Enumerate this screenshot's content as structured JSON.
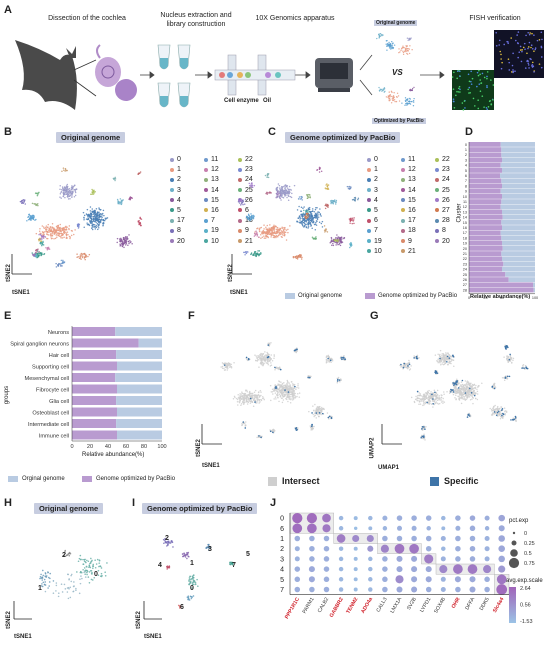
{
  "panels": {
    "A": {
      "letter": "A",
      "steps": [
        "Dissection of the cochlea",
        "Nucleus extraction and library construction",
        "10X Genomics apparatus",
        "FISH verification"
      ],
      "chip_labels": [
        "Cell enzyme",
        "Oil"
      ],
      "original_label": "Original genome",
      "vs_label": "VS",
      "optimized_label": "Optimized by PacBio"
    },
    "B": {
      "letter": "B",
      "title": "Original genome",
      "xlabel": "tSNE1",
      "ylabel": "tSNE2"
    },
    "C": {
      "letter": "C",
      "title": "Genome optimized by PacBio",
      "xlabel": "tSNE1",
      "ylabel": "tSNE2",
      "legend_original": "Original genome",
      "legend_optimized": "Genome optimized by PacBio"
    },
    "D": {
      "letter": "D",
      "ylabel": "Cluster",
      "xlabel": "Relative abundance(%)"
    },
    "E": {
      "letter": "E",
      "ylabel": "groups",
      "xlabel": "Relative abundance(%)",
      "legend_original": "Orginal genome",
      "legend_optimized": "Genome optimized by PacBio"
    },
    "F": {
      "letter": "F",
      "xlabel": "tSNE1",
      "ylabel": "tSNE2",
      "legend": "Intersect"
    },
    "G": {
      "letter": "G",
      "xlabel": "UMAP1",
      "ylabel": "UMAP2",
      "legend": "Specific"
    },
    "H": {
      "letter": "H",
      "title": "Original genome",
      "xlabel": "tSNE1",
      "ylabel": "tSNE2",
      "cluster_labels": [
        "2",
        "1",
        "0"
      ]
    },
    "I": {
      "letter": "I",
      "title": "Genome optimized by PacBio",
      "xlabel": "tSNE1",
      "ylabel": "tSNE2",
      "cluster_labels": [
        "2",
        "3",
        "1",
        "0",
        "4",
        "7",
        "5",
        "6"
      ]
    },
    "J": {
      "letter": "J",
      "size_title": "pct.exp",
      "size_levels": [
        "0",
        "0.25",
        "0.5",
        "0.75"
      ],
      "color_title": "avg.exp.scale",
      "color_levels": [
        "2.64",
        "0.56",
        "-1.53"
      ]
    }
  },
  "clusters": {
    "ids": [
      "0",
      "1",
      "2",
      "3",
      "4",
      "5",
      "6",
      "7",
      "8",
      "9",
      "10",
      "11",
      "12",
      "13",
      "14",
      "15",
      "16",
      "17",
      "18",
      "19",
      "20",
      "21",
      "22",
      "23",
      "24",
      "25",
      "26",
      "27",
      "28"
    ],
    "colors": [
      "#9a9ac8",
      "#e89a80",
      "#4a7fb5",
      "#6db0c9",
      "#8a5a9c",
      "#3a9a8a",
      "#c0506a",
      "#5aa0d0",
      "#7a70b8",
      "#d98a6a",
      "#4aa6a0",
      "#6f9acd",
      "#c77fae",
      "#8fb07a",
      "#a05a9a",
      "#6a8ac0",
      "#d0b050",
      "#7ab0b0",
      "#b46a8a",
      "#5ab0c8",
      "#9a7ab8",
      "#c89a6a",
      "#aac05a",
      "#7a8ad0",
      "#c06a6a",
      "#6ab07a",
      "#a07ac8",
      "#d07a50",
      "#5a8ab0"
    ]
  },
  "legend_B": [
    "0",
    "11",
    "22",
    "1",
    "12",
    "23",
    "2",
    "13",
    "24",
    "3",
    "14",
    "25",
    "4",
    "15",
    "26",
    "5",
    "16",
    "6",
    "17",
    "7",
    "18",
    "8",
    "19",
    "9",
    "20",
    "10",
    "21"
  ],
  "legend_C": [
    "0",
    "11",
    "22",
    "1",
    "12",
    "23",
    "2",
    "13",
    "24",
    "3",
    "14",
    "25",
    "4",
    "15",
    "26",
    "5",
    "16",
    "27",
    "6",
    "17",
    "28",
    "7",
    "18",
    "8",
    "19",
    "9",
    "20",
    "10",
    "21"
  ],
  "colors": {
    "original": "#b9cbe2",
    "optimized": "#b99bd0",
    "intersect": "#cfcfcf",
    "specific": "#3e74a8",
    "title_bg": "#c7cde0"
  },
  "chart_data": [
    {
      "type": "bar",
      "panel": "D",
      "orientation": "horizontal",
      "stacked": true,
      "categories": [
        "0",
        "1",
        "2",
        "3",
        "4",
        "5",
        "6",
        "7",
        "8",
        "9",
        "10",
        "11",
        "12",
        "13",
        "14",
        "15",
        "16",
        "17",
        "18",
        "19",
        "20",
        "21",
        "22",
        "23",
        "24",
        "25",
        "26",
        "27",
        "28"
      ],
      "series": [
        {
          "name": "Genome optimized by PacBio",
          "values": [
            48,
            49,
            49,
            50,
            48,
            50,
            47,
            49,
            50,
            48,
            50,
            49,
            48,
            50,
            51,
            49,
            50,
            48,
            49,
            50,
            51,
            49,
            50,
            52,
            50,
            55,
            60,
            97,
            98
          ]
        },
        {
          "name": "Original genome",
          "values": [
            52,
            51,
            51,
            50,
            52,
            50,
            53,
            51,
            50,
            52,
            50,
            51,
            52,
            50,
            49,
            51,
            50,
            52,
            51,
            50,
            49,
            51,
            50,
            48,
            50,
            45,
            40,
            3,
            2
          ]
        }
      ],
      "xticks": [
        "0",
        "25",
        "50",
        "75",
        "100"
      ],
      "xlim": [
        0,
        100
      ],
      "xlabel": "Relative abundance(%)",
      "ylabel": "Cluster"
    },
    {
      "type": "bar",
      "panel": "E",
      "orientation": "horizontal",
      "stacked": true,
      "categories": [
        "Neurons",
        "Spiral ganglion neurons",
        "Hair cell",
        "Supporting cell",
        "Mesenchymal cell",
        "Fibrocyte cell",
        "Glia cell",
        "Osteoblast cell",
        "Intermediate cell",
        "Immune cell"
      ],
      "series": [
        {
          "name": "Genome optimized by PacBio",
          "values": [
            48,
            74,
            49,
            50,
            48,
            50,
            49,
            50,
            49,
            50
          ]
        },
        {
          "name": "Orginal genome",
          "values": [
            52,
            26,
            51,
            50,
            52,
            50,
            51,
            50,
            51,
            50
          ]
        }
      ],
      "xticks": [
        "0",
        "20",
        "40",
        "60",
        "80",
        "100"
      ],
      "xlim": [
        0,
        100
      ],
      "xlabel": "Relative abundance(%)",
      "ylabel": "groups"
    },
    {
      "type": "scatter",
      "panel": "J",
      "subtype": "dotplot",
      "genes": [
        "PPP1R1C",
        "PARM1",
        "CALB2",
        "GABBR2",
        "TENM2",
        "ADO4a",
        "CALL3",
        "LMX1A",
        "SV2B",
        "LYPD1",
        "SOX4B",
        "OHR",
        "DFFA",
        "DDK5",
        "Slc4a4"
      ],
      "highlighted_genes": [
        "PPP1R1C",
        "GABBR2",
        "TENM2",
        "ADO4a",
        "OHR",
        "Slc4a4"
      ],
      "clusters": [
        "0",
        "6",
        "1",
        "2",
        "3",
        "4",
        "5",
        "7"
      ],
      "pct_exp": [
        [
          0.75,
          0.75,
          0.6,
          0.2,
          0.15,
          0.2,
          0.25,
          0.3,
          0.3,
          0.3,
          0.2,
          0.3,
          0.3,
          0.25,
          0.4
        ],
        [
          0.7,
          0.7,
          0.55,
          0.2,
          0.1,
          0.15,
          0.2,
          0.25,
          0.25,
          0.2,
          0.15,
          0.25,
          0.3,
          0.2,
          0.35
        ],
        [
          0.3,
          0.3,
          0.3,
          0.6,
          0.45,
          0.45,
          0.3,
          0.3,
          0.3,
          0.3,
          0.25,
          0.3,
          0.3,
          0.25,
          0.4
        ],
        [
          0.25,
          0.3,
          0.3,
          0.2,
          0.15,
          0.35,
          0.55,
          0.7,
          0.7,
          0.3,
          0.2,
          0.3,
          0.3,
          0.25,
          0.4
        ],
        [
          0.25,
          0.3,
          0.3,
          0.2,
          0.15,
          0.2,
          0.3,
          0.35,
          0.35,
          0.65,
          0.25,
          0.3,
          0.3,
          0.25,
          0.4
        ],
        [
          0.3,
          0.35,
          0.3,
          0.2,
          0.15,
          0.2,
          0.3,
          0.35,
          0.35,
          0.35,
          0.55,
          0.7,
          0.7,
          0.55,
          0.45
        ],
        [
          0.3,
          0.35,
          0.3,
          0.2,
          0.15,
          0.2,
          0.3,
          0.55,
          0.35,
          0.35,
          0.25,
          0.35,
          0.35,
          0.3,
          0.7
        ],
        [
          0.3,
          0.3,
          0.3,
          0.2,
          0.15,
          0.2,
          0.3,
          0.35,
          0.35,
          0.3,
          0.25,
          0.3,
          0.35,
          0.3,
          0.8
        ]
      ],
      "avg_exp_scale": [
        [
          2.4,
          2.3,
          1.9,
          -1.0,
          -1.2,
          -1.0,
          -0.8,
          -0.6,
          -0.6,
          -0.6,
          -1.0,
          -0.6,
          -0.4,
          -0.6,
          -0.2
        ],
        [
          2.2,
          2.1,
          1.7,
          -1.0,
          -1.3,
          -1.1,
          -0.9,
          -0.7,
          -0.7,
          -0.8,
          -1.1,
          -0.7,
          -0.5,
          -0.8,
          -0.4
        ],
        [
          -0.6,
          -0.6,
          -0.6,
          1.6,
          1.0,
          1.0,
          -0.6,
          -0.6,
          -0.6,
          -0.6,
          -0.8,
          -0.6,
          -0.6,
          -0.8,
          -0.3
        ],
        [
          -0.8,
          -0.6,
          -0.6,
          -1.0,
          -1.2,
          0.4,
          1.3,
          1.9,
          1.8,
          -0.6,
          -1.0,
          -0.6,
          -0.5,
          -0.8,
          -0.3
        ],
        [
          -0.8,
          -0.6,
          -0.6,
          -1.0,
          -1.2,
          -1.0,
          -0.6,
          -0.4,
          -0.4,
          1.6,
          -0.8,
          -0.6,
          -0.5,
          -0.8,
          -0.3
        ],
        [
          -0.6,
          -0.4,
          -0.6,
          -1.0,
          -1.2,
          -1.0,
          -0.6,
          -0.4,
          -0.4,
          -0.4,
          1.1,
          1.7,
          1.7,
          1.2,
          0.3
        ],
        [
          -0.6,
          -0.4,
          -0.6,
          -1.0,
          -1.2,
          -1.0,
          -0.6,
          0.9,
          -0.4,
          -0.4,
          -0.8,
          -0.4,
          -0.4,
          -0.6,
          1.8
        ],
        [
          -0.6,
          -0.6,
          -0.6,
          -1.0,
          -1.2,
          -1.0,
          -0.6,
          -0.4,
          -0.4,
          -0.6,
          -0.8,
          -0.6,
          -0.4,
          -0.6,
          2.3
        ]
      ]
    }
  ]
}
